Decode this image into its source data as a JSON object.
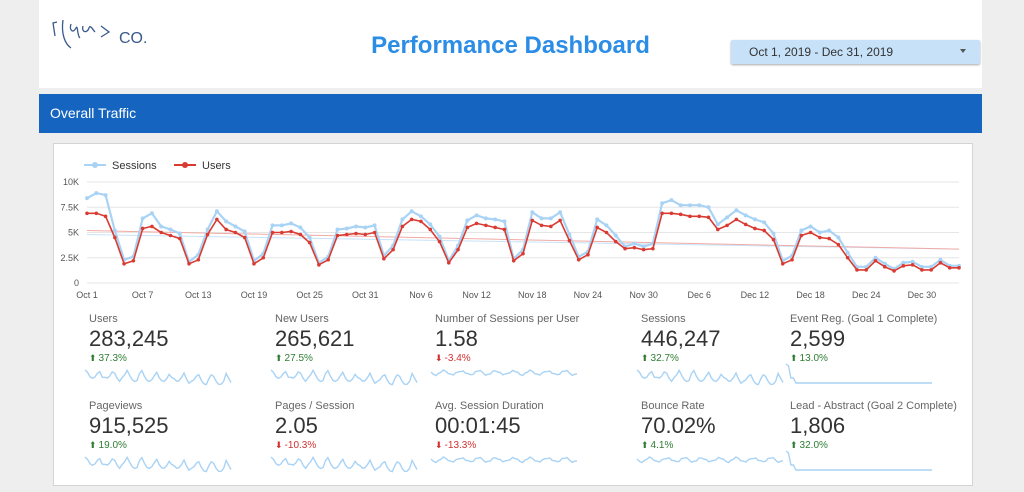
{
  "header": {
    "logo_text": "CO.",
    "title": "Performance Dashboard",
    "date_range": "Oct 1, 2019 - Dec 31, 2019"
  },
  "section": {
    "title": "Overall Traffic"
  },
  "chart_data": {
    "type": "line",
    "series": [
      {
        "name": "Sessions",
        "color": "#a9d3f5",
        "values": [
          8400,
          8900,
          8700,
          5200,
          2300,
          2600,
          6400,
          6900,
          5600,
          5300,
          4900,
          2100,
          2800,
          5300,
          7100,
          6100,
          5600,
          5100,
          2200,
          2900,
          5700,
          5700,
          5900,
          5500,
          4500,
          2000,
          2600,
          5300,
          5400,
          5600,
          5500,
          5700,
          2700,
          3700,
          6300,
          7100,
          6600,
          5800,
          4600,
          2200,
          3700,
          6200,
          6700,
          6400,
          6300,
          6100,
          2400,
          3300,
          7000,
          6400,
          6400,
          7000,
          4800,
          2600,
          3100,
          6300,
          5700,
          4700,
          3600,
          3900,
          3600,
          3900,
          7900,
          8200,
          7700,
          7700,
          7700,
          7500,
          5800,
          6500,
          7200,
          6700,
          6300,
          6000,
          4900,
          2200,
          2700,
          5200,
          5600,
          5000,
          5200,
          4500,
          3000,
          1600,
          1600,
          2500,
          1900,
          1400,
          2000,
          2100,
          1600,
          1600,
          2300,
          1700,
          1700
        ],
        "trendline": [
          4800,
          3350
        ]
      },
      {
        "name": "Users",
        "color": "#d93b32",
        "values": [
          6900,
          6900,
          6600,
          4500,
          1900,
          2200,
          5400,
          5600,
          5000,
          4700,
          4400,
          1900,
          2300,
          4800,
          6300,
          5300,
          5000,
          4500,
          1900,
          2500,
          5000,
          5000,
          5100,
          4800,
          4000,
          1800,
          2300,
          4700,
          4800,
          4900,
          4800,
          5000,
          2400,
          3300,
          5600,
          6300,
          6100,
          5300,
          4100,
          2000,
          3300,
          5500,
          5900,
          5700,
          5500,
          5300,
          2200,
          2900,
          6200,
          5700,
          5600,
          6200,
          4200,
          2300,
          2800,
          5500,
          5000,
          4100,
          3400,
          3500,
          3300,
          3400,
          6900,
          6900,
          6800,
          6600,
          6600,
          6500,
          5300,
          5700,
          6300,
          5800,
          5400,
          5200,
          4300,
          1900,
          2300,
          4700,
          5000,
          4500,
          4400,
          3800,
          2500,
          1300,
          1300,
          2200,
          1600,
          1200,
          1700,
          1800,
          1300,
          1300,
          2000,
          1500,
          1500
        ],
        "trendline": [
          5200,
          3350
        ]
      }
    ],
    "y_ticks": [
      "10K",
      "7.5K",
      "5K",
      "2.5K",
      "0"
    ],
    "x_ticks": [
      "Oct 1",
      "Oct 7",
      "Oct 13",
      "Oct 19",
      "Oct 25",
      "Oct 31",
      "Nov 6",
      "Nov 12",
      "Nov 18",
      "Nov 24",
      "Nov 30",
      "Dec 6",
      "Dec 12",
      "Dec 18",
      "Dec 24",
      "Dec 30"
    ],
    "ylim": [
      0,
      10000
    ],
    "legend_position": "top-left",
    "grid": true
  },
  "kpis": [
    {
      "label": "Users",
      "value": "283,245",
      "delta": "37.3%",
      "dir": "up"
    },
    {
      "label": "New Users",
      "value": "265,621",
      "delta": "27.5%",
      "dir": "up"
    },
    {
      "label": "Number of Sessions per User",
      "value": "1.58",
      "delta": "-3.4%",
      "dir": "down"
    },
    {
      "label": "Sessions",
      "value": "446,247",
      "delta": "32.7%",
      "dir": "up"
    },
    {
      "label": "Event Reg. (Goal 1 Complete)",
      "value": "2,599",
      "delta": "13.0%",
      "dir": "up"
    },
    {
      "label": "Pageviews",
      "value": "915,525",
      "delta": "19.0%",
      "dir": "up"
    },
    {
      "label": "Pages / Session",
      "value": "2.05",
      "delta": "-10.3%",
      "dir": "down"
    },
    {
      "label": "Avg. Session Duration",
      "value": "00:01:45",
      "delta": "-13.3%",
      "dir": "down"
    },
    {
      "label": "Bounce Rate",
      "value": "70.02%",
      "delta": "4.1%",
      "dir": "up"
    },
    {
      "label": "Lead - Abstract (Goal 2 Complete)",
      "value": "1,806",
      "delta": "32.0%",
      "dir": "up"
    }
  ]
}
